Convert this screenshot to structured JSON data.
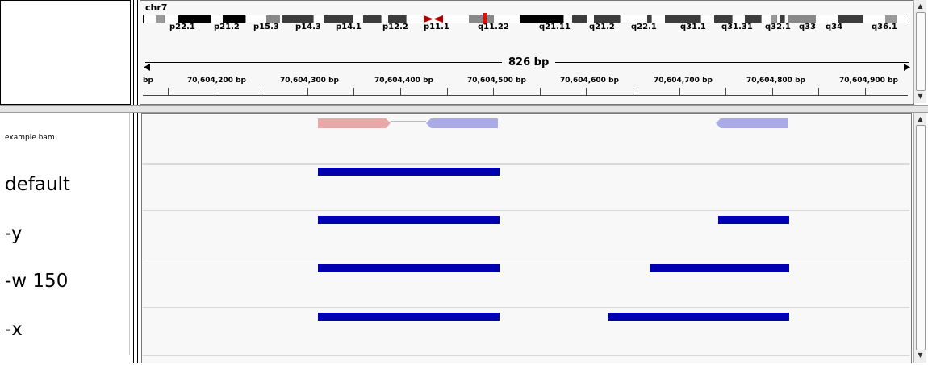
{
  "header": {
    "chrom": "chr7",
    "cytobands": [
      "p22.1",
      "p21.2",
      "p15.3",
      "p14.3",
      "p14.1",
      "p12.2",
      "p11.1",
      "q11.22",
      "q21.11",
      "q21.2",
      "q22.1",
      "q31.1",
      "q31.31",
      "q32.1",
      "q33",
      "q34",
      "q36.1"
    ],
    "span_label": "826 bp",
    "ruler_ticks": [
      "bp",
      "70,604,200 bp",
      "70,604,300 bp",
      "70,604,400 bp",
      "70,604,500 bp",
      "70,604,600 bp",
      "70,604,700 bp",
      "70,604,800 bp",
      "70,604,900 bp"
    ]
  },
  "tracks": {
    "bam_name": "example.bam",
    "rows": [
      {
        "name": "default"
      },
      {
        "name": "-y"
      },
      {
        "name": "-w 150"
      },
      {
        "name": "-x"
      }
    ]
  },
  "colors": {
    "forward_read": "#e8a8a8",
    "reverse_read": "#aaaae6",
    "feature": "#0000b0",
    "centromere": "#b00000",
    "current_locus": "#ff0000"
  }
}
